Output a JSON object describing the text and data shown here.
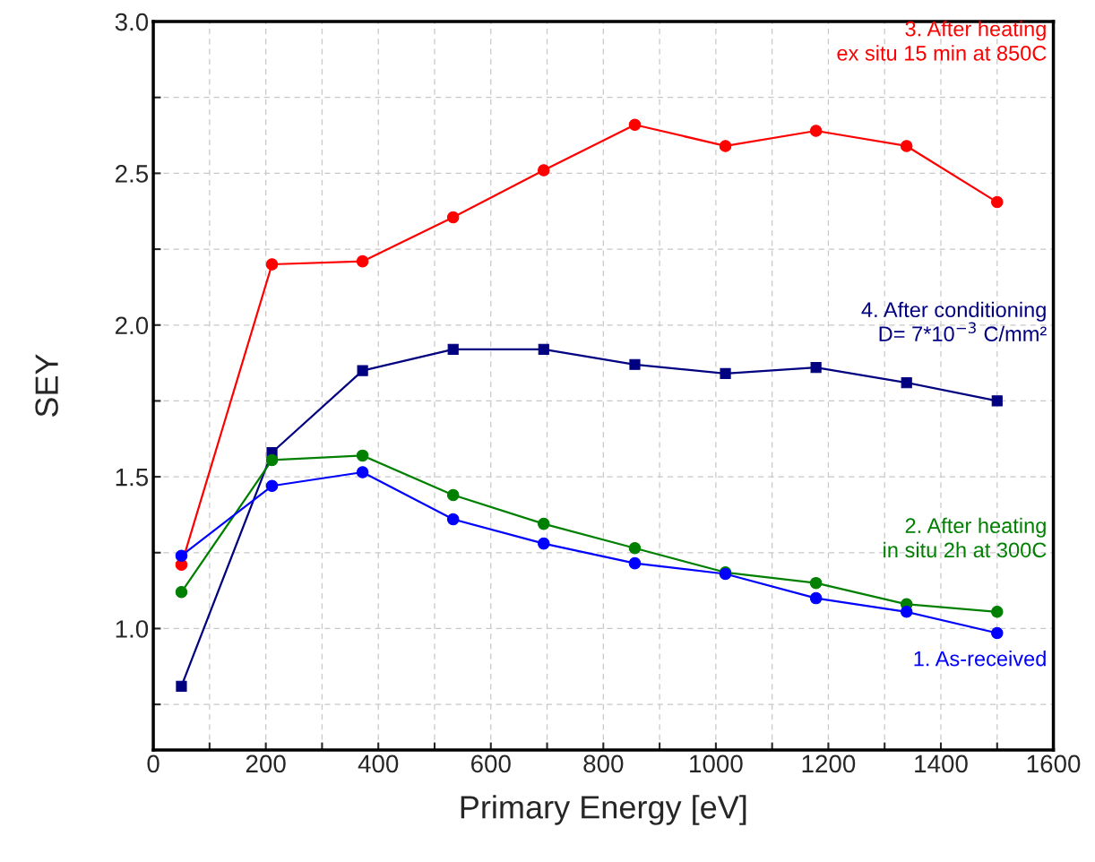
{
  "chart_data": {
    "type": "line",
    "xlabel": "Primary Energy [eV]",
    "ylabel": "SEY",
    "x": [
      50,
      211,
      372,
      533,
      694,
      856,
      1017,
      1178,
      1339,
      1500
    ],
    "series": [
      {
        "name": "1. As-received",
        "color": "#0000ff",
        "marker": "circle",
        "values": [
          1.24,
          1.47,
          1.515,
          1.36,
          1.28,
          1.215,
          1.18,
          1.1,
          1.055,
          0.985
        ]
      },
      {
        "name": "2. After heating\n in situ 2h at 300C",
        "color": "#008000",
        "marker": "circle",
        "values": [
          1.12,
          1.555,
          1.57,
          1.44,
          1.345,
          1.265,
          1.185,
          1.15,
          1.08,
          1.055
        ]
      },
      {
        "name": "3. After heating\n ex situ 15 min at 850C",
        "color": "#ff0000",
        "marker": "circle",
        "values": [
          1.21,
          2.2,
          2.21,
          2.355,
          2.51,
          2.66,
          2.59,
          2.64,
          2.59,
          2.405
        ]
      },
      {
        "name": "4. After conditioning\nD= 7*10$^{−3}$ C/mm²",
        "color": "#000080",
        "marker": "square",
        "values": [
          0.81,
          1.58,
          1.85,
          1.92,
          1.92,
          1.87,
          1.84,
          1.86,
          1.81,
          1.75
        ]
      }
    ],
    "xlim": [
      0,
      1600
    ],
    "xticks": [
      0,
      {
        "value": 100,
        "label": null
      },
      200,
      {
        "value": 300,
        "label": null
      },
      400,
      {
        "value": 500,
        "label": null
      },
      600,
      {
        "value": 700,
        "label": null
      },
      800,
      {
        "value": 900,
        "label": null
      },
      1000,
      {
        "value": 1100,
        "label": null
      },
      1200,
      {
        "value": 1300,
        "label": null
      },
      1400,
      {
        "value": 1500,
        "label": null
      },
      1600
    ],
    "ylim": [
      0.6,
      3.0
    ],
    "yticks": [
      {
        "value": 0.75,
        "label": null
      },
      {
        "value": 1.0,
        "label": "1.0"
      },
      {
        "value": 1.25,
        "label": null
      },
      {
        "value": 1.5,
        "label": "1.5"
      },
      {
        "value": 1.75,
        "label": null
      },
      {
        "value": 2.0,
        "label": "2.0"
      },
      {
        "value": 2.25,
        "label": null
      },
      {
        "value": 2.5,
        "label": "2.5"
      },
      {
        "value": 2.75,
        "label": null
      },
      {
        "value": 3.0,
        "label": "3.0"
      }
    ],
    "grid": true,
    "line_style": "solid"
  }
}
